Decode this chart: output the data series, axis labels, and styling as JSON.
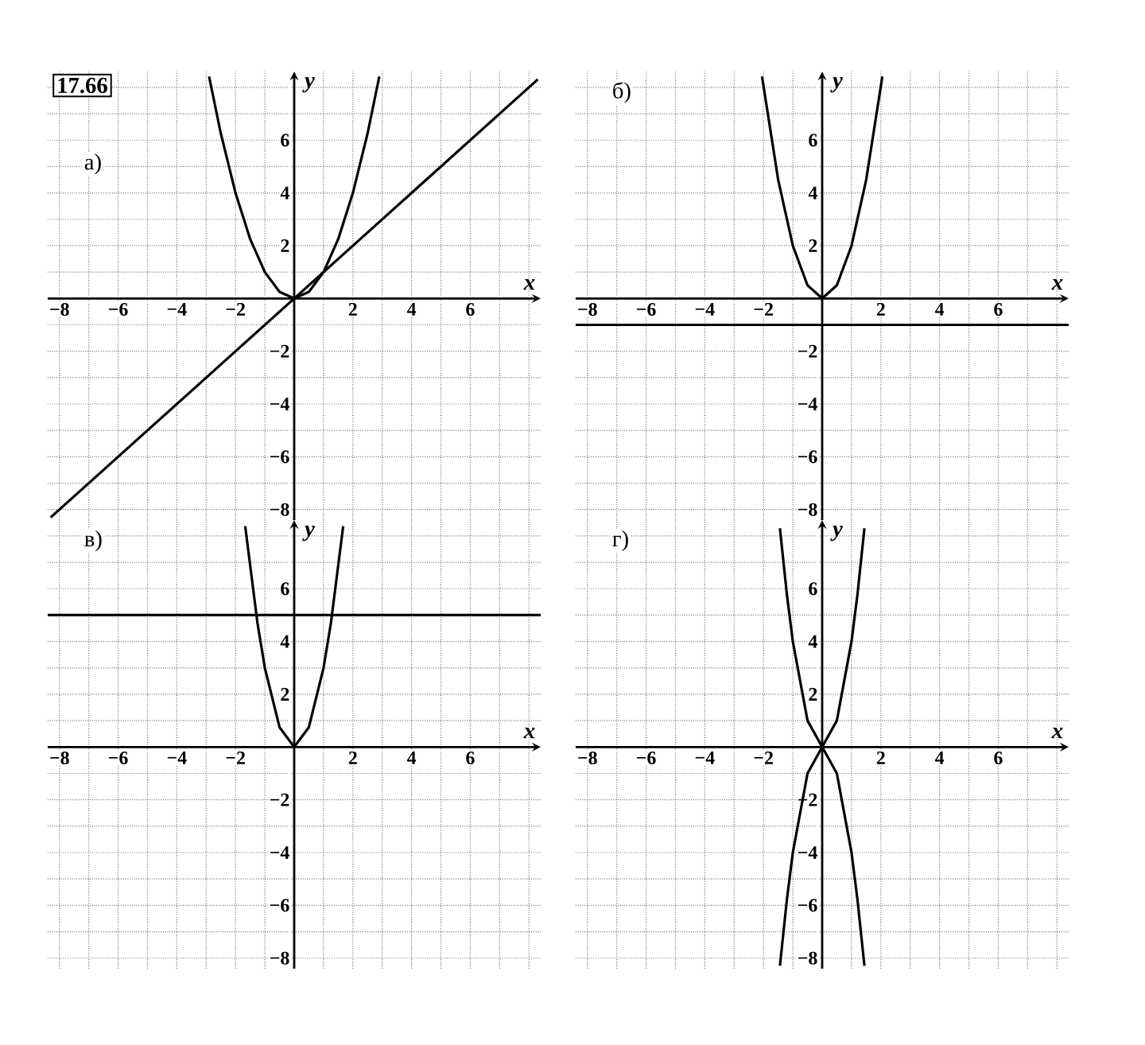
{
  "chart_data": [
    {
      "type": "line",
      "title": "а)",
      "annotations": [
        "17.66"
      ],
      "xlabel": "x",
      "ylabel": "y",
      "xlim": [
        -8.4,
        8.4
      ],
      "ylim": [
        -8.4,
        8.6
      ],
      "grid": true,
      "marker": "none",
      "xticks": [
        {
          "value": -8,
          "label": "−8"
        },
        {
          "value": -7,
          "label": null
        },
        {
          "value": -6,
          "label": "−6"
        },
        {
          "value": -5,
          "label": null
        },
        {
          "value": -4,
          "label": "−4"
        },
        {
          "value": -3,
          "label": null
        },
        {
          "value": -2,
          "label": "−2"
        },
        {
          "value": -1,
          "label": null
        },
        {
          "value": 0,
          "label": null
        },
        {
          "value": 1,
          "label": null
        },
        2,
        {
          "value": 3,
          "label": null
        },
        4,
        {
          "value": 5,
          "label": null
        },
        6,
        {
          "value": 7,
          "label": null
        },
        {
          "value": 8,
          "label": null
        }
      ],
      "yticks": [
        {
          "value": -8,
          "label": "−8"
        },
        {
          "value": -7,
          "label": null
        },
        {
          "value": -6,
          "label": "−6"
        },
        {
          "value": -5,
          "label": null
        },
        {
          "value": -4,
          "label": "−4"
        },
        {
          "value": -3,
          "label": null
        },
        {
          "value": -2,
          "label": "−2"
        },
        {
          "value": -1,
          "label": null
        },
        {
          "value": 0,
          "label": null
        },
        {
          "value": 1,
          "label": null
        },
        2,
        {
          "value": 3,
          "label": null
        },
        4,
        {
          "value": 5,
          "label": null
        },
        6,
        {
          "value": 7,
          "label": null
        },
        {
          "value": 8,
          "label": null
        }
      ],
      "series": [
        {
          "color": "#000000",
          "x": [
            -2.9,
            -2.5,
            -2,
            -1.5,
            -1,
            -0.5,
            0,
            0.5,
            1,
            1.5,
            2,
            2.5,
            2.9
          ],
          "values": [
            8.41,
            6.25,
            4,
            2.25,
            1,
            0.25,
            0,
            0.25,
            1,
            2.25,
            4,
            6.25,
            8.41
          ]
        },
        {
          "color": "#000000",
          "x": [
            -8.3,
            8.3
          ],
          "values": [
            -8.3,
            8.3
          ]
        }
      ]
    },
    {
      "type": "line",
      "title": "б)",
      "xlabel": "x",
      "ylabel": "y",
      "xlim": [
        -8.4,
        8.4
      ],
      "ylim": [
        -8.4,
        8.6
      ],
      "grid": true,
      "marker": "none",
      "xticks": [
        {
          "value": -8,
          "label": "−8"
        },
        {
          "value": -7,
          "label": null
        },
        {
          "value": -6,
          "label": "−6"
        },
        {
          "value": -5,
          "label": null
        },
        {
          "value": -4,
          "label": "−4"
        },
        {
          "value": -3,
          "label": null
        },
        {
          "value": -2,
          "label": "−2"
        },
        {
          "value": -1,
          "label": null
        },
        {
          "value": 0,
          "label": null
        },
        {
          "value": 1,
          "label": null
        },
        2,
        {
          "value": 3,
          "label": null
        },
        4,
        {
          "value": 5,
          "label": null
        },
        6,
        {
          "value": 7,
          "label": null
        },
        {
          "value": 8,
          "label": null
        }
      ],
      "yticks": [
        {
          "value": -8,
          "label": "−8"
        },
        {
          "value": -7,
          "label": null
        },
        {
          "value": -6,
          "label": "−6"
        },
        {
          "value": -5,
          "label": null
        },
        {
          "value": -4,
          "label": "−4"
        },
        {
          "value": -3,
          "label": null
        },
        {
          "value": -2,
          "label": "−2"
        },
        {
          "value": -1,
          "label": null
        },
        {
          "value": 0,
          "label": null
        },
        {
          "value": 1,
          "label": null
        },
        2,
        {
          "value": 3,
          "label": null
        },
        4,
        {
          "value": 5,
          "label": null
        },
        6,
        {
          "value": 7,
          "label": null
        },
        {
          "value": 8,
          "label": null
        }
      ],
      "series": [
        {
          "color": "#000000",
          "x": [
            -2.05,
            -1.5,
            -1,
            -0.5,
            0,
            0.5,
            1,
            1.5,
            2.05
          ],
          "values": [
            8.41,
            4.5,
            2,
            0.5,
            0,
            0.5,
            2,
            4.5,
            8.41
          ]
        },
        {
          "color": "#000000",
          "x": [
            -8.4,
            8.4
          ],
          "values": [
            -1,
            -1
          ]
        }
      ]
    },
    {
      "type": "line",
      "title": "в)",
      "xlabel": "x",
      "ylabel": "y",
      "xlim": [
        -8.4,
        8.4
      ],
      "ylim": [
        -8.4,
        8.6
      ],
      "grid": true,
      "marker": "none",
      "xticks": [
        {
          "value": -8,
          "label": "−8"
        },
        {
          "value": -7,
          "label": null
        },
        {
          "value": -6,
          "label": "−6"
        },
        {
          "value": -5,
          "label": null
        },
        {
          "value": -4,
          "label": "−4"
        },
        {
          "value": -3,
          "label": null
        },
        {
          "value": -2,
          "label": "−2"
        },
        {
          "value": -1,
          "label": null
        },
        {
          "value": 0,
          "label": null
        },
        {
          "value": 1,
          "label": null
        },
        2,
        {
          "value": 3,
          "label": null
        },
        4,
        {
          "value": 5,
          "label": null
        },
        6,
        {
          "value": 7,
          "label": null
        },
        {
          "value": 8,
          "label": null
        }
      ],
      "yticks": [
        {
          "value": -8,
          "label": "−8"
        },
        {
          "value": -7,
          "label": null
        },
        {
          "value": -6,
          "label": "−6"
        },
        {
          "value": -5,
          "label": null
        },
        {
          "value": -4,
          "label": "−4"
        },
        {
          "value": -3,
          "label": null
        },
        {
          "value": -2,
          "label": "−2"
        },
        {
          "value": -1,
          "label": null
        },
        {
          "value": 0,
          "label": null
        },
        {
          "value": 1,
          "label": null
        },
        2,
        {
          "value": 3,
          "label": null
        },
        4,
        {
          "value": 5,
          "label": null
        },
        6,
        {
          "value": 7,
          "label": null
        },
        {
          "value": 8,
          "label": null
        }
      ],
      "series": [
        {
          "color": "#000000",
          "x": [
            -1.67,
            -1.25,
            -1,
            -0.5,
            0,
            0.5,
            1,
            1.25,
            1.67
          ],
          "values": [
            8.37,
            4.69,
            3,
            0.75,
            0,
            0.75,
            3,
            4.69,
            8.37
          ]
        },
        {
          "color": "#000000",
          "x": [
            -8.4,
            8.4
          ],
          "values": [
            5,
            5
          ]
        }
      ]
    },
    {
      "type": "line",
      "title": "г)",
      "xlabel": "x",
      "ylabel": "y",
      "xlim": [
        -8.4,
        8.4
      ],
      "ylim": [
        -8.4,
        8.6
      ],
      "grid": true,
      "marker": "none",
      "xticks": [
        {
          "value": -8,
          "label": "−8"
        },
        {
          "value": -7,
          "label": null
        },
        {
          "value": -6,
          "label": "−6"
        },
        {
          "value": -5,
          "label": null
        },
        {
          "value": -4,
          "label": "−4"
        },
        {
          "value": -3,
          "label": null
        },
        {
          "value": -2,
          "label": "−2"
        },
        {
          "value": -1,
          "label": null
        },
        {
          "value": 0,
          "label": null
        },
        {
          "value": 1,
          "label": null
        },
        2,
        {
          "value": 3,
          "label": null
        },
        4,
        {
          "value": 5,
          "label": null
        },
        6,
        {
          "value": 7,
          "label": null
        },
        {
          "value": 8,
          "label": null
        }
      ],
      "yticks": [
        {
          "value": -8,
          "label": "−8"
        },
        {
          "value": -7,
          "label": null
        },
        {
          "value": -6,
          "label": "−6"
        },
        {
          "value": -5,
          "label": null
        },
        {
          "value": -4,
          "label": "−4"
        },
        {
          "value": -3,
          "label": null
        },
        {
          "value": -2,
          "label": "−2"
        },
        {
          "value": -1,
          "label": null
        },
        {
          "value": 0,
          "label": null
        },
        {
          "value": 1,
          "label": null
        },
        2,
        {
          "value": 3,
          "label": null
        },
        4,
        {
          "value": 5,
          "label": null
        },
        6,
        {
          "value": 7,
          "label": null
        },
        {
          "value": 8,
          "label": null
        }
      ],
      "series": [
        {
          "color": "#000000",
          "x": [
            -1.44,
            -1.2,
            -1,
            -0.5,
            0,
            0.5,
            1,
            1.2,
            1.44
          ],
          "values": [
            8.29,
            5.76,
            4,
            1,
            0,
            1,
            4,
            5.76,
            8.29
          ]
        },
        {
          "color": "#000000",
          "x": [
            -1.44,
            -1.2,
            -1,
            -0.5,
            0,
            0.5,
            1,
            1.2,
            1.44
          ],
          "values": [
            -8.29,
            -5.76,
            -4,
            -1,
            0,
            -1,
            -4,
            -5.76,
            -8.29
          ]
        }
      ]
    }
  ]
}
